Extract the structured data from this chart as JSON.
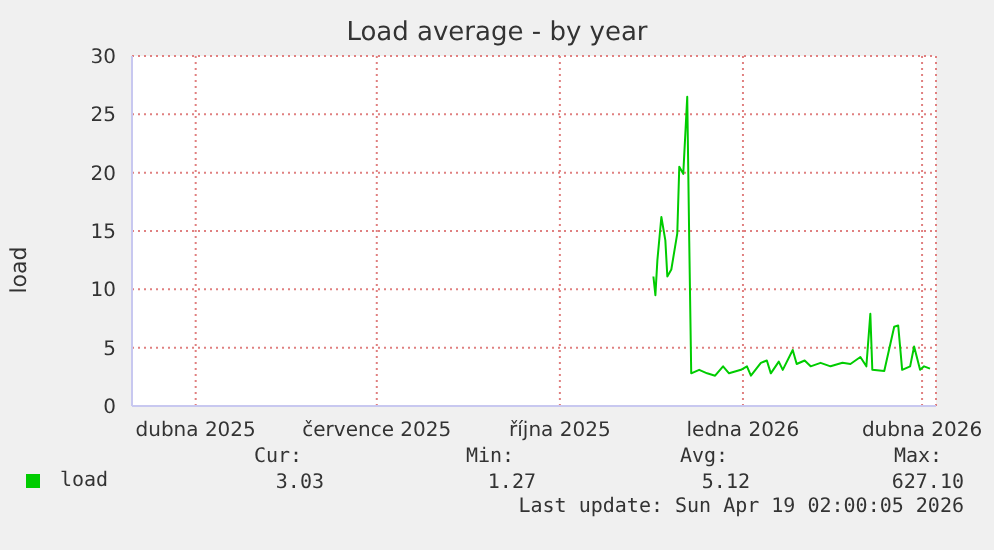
{
  "chart_data": {
    "type": "line",
    "title": "Load average - by year",
    "ylabel": "load",
    "x": [
      "2025-12-01",
      "2025-12-02",
      "2025-12-03",
      "2025-12-05",
      "2025-12-07",
      "2025-12-08",
      "2025-12-10",
      "2025-12-13",
      "2025-12-14",
      "2025-12-16",
      "2025-12-18",
      "2025-12-19",
      "2025-12-20",
      "2025-12-24",
      "2025-12-28",
      "2026-01-01",
      "2026-01-05",
      "2026-01-08",
      "2026-01-14",
      "2026-01-17",
      "2026-01-19",
      "2026-01-24",
      "2026-01-27",
      "2026-01-29",
      "2026-02-02",
      "2026-02-04",
      "2026-02-09",
      "2026-02-11",
      "2026-02-15",
      "2026-02-18",
      "2026-02-23",
      "2026-02-28",
      "2026-03-06",
      "2026-03-10",
      "2026-03-15",
      "2026-03-18",
      "2026-03-20",
      "2026-03-21",
      "2026-03-27",
      "2026-04-01",
      "2026-04-03",
      "2026-04-05",
      "2026-04-09",
      "2026-04-11",
      "2026-04-14",
      "2026-04-16",
      "2026-04-19"
    ],
    "series": [
      {
        "name": "load",
        "color": "#00cc00",
        "values": [
          11.1,
          9.5,
          12.5,
          16.2,
          14.2,
          11.1,
          11.7,
          14.8,
          20.5,
          19.9,
          26.5,
          14.2,
          2.8,
          3.1,
          2.8,
          2.6,
          3.4,
          2.8,
          3.1,
          3.4,
          2.6,
          3.7,
          3.9,
          2.8,
          3.8,
          3.1,
          4.8,
          3.6,
          3.9,
          3.4,
          3.7,
          3.4,
          3.7,
          3.6,
          4.2,
          3.4,
          7.9,
          3.1,
          3.0,
          6.8,
          6.9,
          3.1,
          3.4,
          5.1,
          3.1,
          3.4,
          3.2
        ]
      }
    ],
    "xlim": [
      "2025-03-14",
      "2026-04-22"
    ],
    "xticks": [
      {
        "value": "2025-04-15",
        "label": "dubna 2025"
      },
      {
        "value": "2025-07-15",
        "label": "července 2025"
      },
      {
        "value": "2025-10-15",
        "label": "října 2025"
      },
      {
        "value": "2026-01-15",
        "label": "ledna 2026"
      },
      {
        "value": "2026-04-15",
        "label": "dubna 2026"
      }
    ],
    "ylim": [
      0,
      30
    ],
    "yticks": [
      0,
      5,
      10,
      15,
      20,
      25,
      30
    ],
    "grid": true,
    "legend": "bottom left",
    "marker": "none",
    "line_style": "solid",
    "annotations": [
      "Cur:",
      "Min:",
      "Avg:",
      "Max:",
      "3.03",
      "1.27",
      "5.12",
      "627.10",
      "Last update: Sun Apr 19 02:00:05 2026"
    ]
  }
}
